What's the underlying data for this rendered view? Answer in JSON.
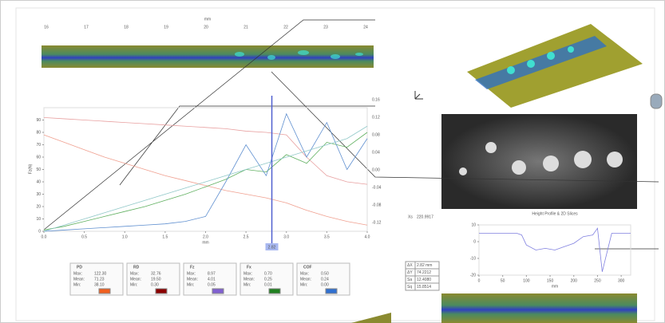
{
  "strip_axis": {
    "label": "mm",
    "ticks": [
      "16",
      "17",
      "18",
      "19",
      "20",
      "21",
      "22",
      "23",
      "24"
    ]
  },
  "chart": {
    "type": "line",
    "x_label": "mm",
    "y_label": "Fz(N)",
    "xlim": [
      0,
      4
    ],
    "ylim": [
      0,
      100
    ],
    "xticks": [
      {
        "value": 0,
        "label": "0.0"
      },
      {
        "value": 0.5,
        "label": "0.5"
      },
      {
        "value": 1,
        "label": "1.0"
      },
      {
        "value": 1.5,
        "label": "1.5"
      },
      {
        "value": 2,
        "label": "2.0"
      },
      {
        "value": 2.5,
        "label": "2.5"
      },
      {
        "value": 3,
        "label": "3.0"
      },
      {
        "value": 3.5,
        "label": "3.5"
      },
      {
        "value": 4,
        "label": "4.0"
      }
    ],
    "yticks": [
      0,
      10,
      20,
      30,
      40,
      50,
      60,
      70,
      80,
      90
    ],
    "right_ticks": [
      "0.16",
      "0.12",
      "0.08",
      "0.04",
      "0.00",
      "-0.04",
      "-0.08",
      "-0.12"
    ],
    "x": [
      0,
      0.25,
      0.5,
      0.75,
      1,
      1.25,
      1.5,
      1.75,
      2,
      2.25,
      2.5,
      2.75,
      3,
      3.25,
      3.5,
      3.75,
      4
    ],
    "series": [
      {
        "name": "PD",
        "color": "#e8a0a0",
        "swatch": "#f06020",
        "values": [
          92,
          91,
          90,
          89,
          88,
          87,
          86,
          85,
          84,
          83,
          81,
          80,
          78,
          60,
          45,
          40,
          38
        ]
      },
      {
        "name": "RD",
        "color": "#f0a090",
        "swatch": "#8b0000",
        "values": [
          78,
          72,
          66,
          60,
          55,
          50,
          45,
          41,
          37,
          33,
          30,
          27,
          23,
          17,
          12,
          8,
          5
        ]
      },
      {
        "name": "Fz",
        "color": "#60b060",
        "swatch": "#8060d0",
        "values": [
          1,
          4,
          8,
          12,
          16,
          20,
          25,
          30,
          36,
          42,
          50,
          48,
          62,
          55,
          72,
          68,
          80
        ]
      },
      {
        "name": "Fx",
        "color": "#6090d0",
        "swatch": "#208020",
        "values": [
          0,
          1,
          2,
          3,
          4,
          5,
          6,
          8,
          12,
          40,
          70,
          45,
          95,
          60,
          88,
          50,
          75
        ]
      },
      {
        "name": "COF",
        "color": "#90c8c8",
        "swatch": "#3070d0",
        "values": [
          0,
          5,
          10,
          15,
          20,
          25,
          30,
          35,
          40,
          45,
          50,
          55,
          60,
          65,
          70,
          75,
          85
        ]
      }
    ],
    "cursor": {
      "value": 2.82,
      "label": "2.82"
    },
    "stat_labels": [
      "Max:",
      "Mean:",
      "Min:"
    ],
    "stats": [
      [
        "122.30",
        "71.23",
        "38.10"
      ],
      [
        "32.76",
        "19.50",
        "0.30"
      ],
      [
        "8.97",
        "4.01",
        "0.05"
      ],
      [
        "0.70",
        "0.25",
        "0.01"
      ],
      [
        "0.50",
        "0.24",
        "0.00"
      ]
    ]
  },
  "profile": {
    "title": "Height Profile & 2D Slices",
    "x_label": "mm",
    "xlim": [
      0,
      320
    ],
    "ylim": [
      -20,
      10
    ],
    "xticks": [
      0,
      50,
      100,
      150,
      200,
      250,
      300
    ],
    "yticks": [
      -20,
      -10,
      0,
      10
    ],
    "x": [
      0,
      40,
      80,
      90,
      100,
      120,
      140,
      160,
      180,
      200,
      220,
      240,
      250,
      260,
      280,
      320
    ],
    "series": [
      {
        "name": "Slice",
        "color": "#8080e0",
        "values": [
          5,
          5,
          5,
          4,
          -2,
          -5,
          -4,
          -5,
          -3,
          -1,
          3,
          4,
          8,
          -18,
          5,
          5
        ]
      }
    ]
  },
  "xs_readout": {
    "label": "Xs",
    "value": "220.9917"
  },
  "table": {
    "rows": [
      [
        "ΔX",
        "2.82 mm"
      ],
      [
        "ΔY",
        "74.2212"
      ],
      [
        "Sa",
        "12.4080"
      ],
      [
        "Sq",
        "15.8514"
      ]
    ]
  }
}
